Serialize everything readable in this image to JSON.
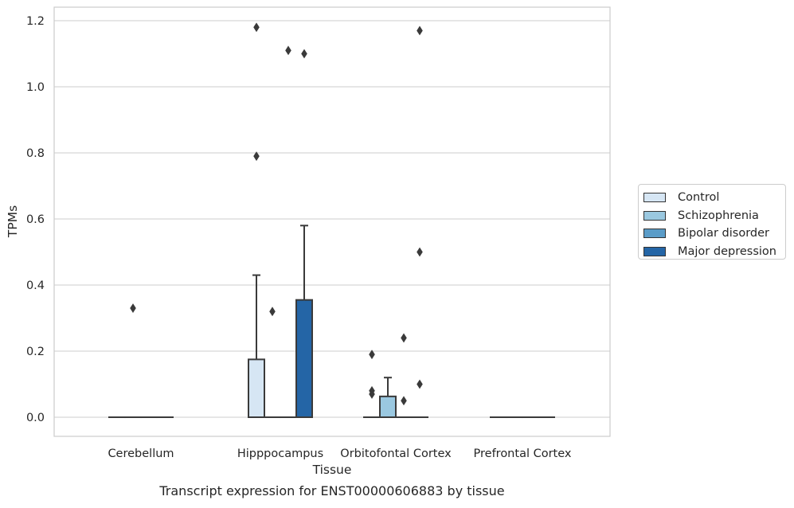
{
  "chart_data": {
    "type": "box",
    "xlabel": "Tissue",
    "ylabel": "TPMs",
    "caption": "Transcript expression for ENST00000606883 by tissue",
    "ylim": [
      -0.055,
      1.24
    ],
    "yticks": [
      "0.0",
      "0.2",
      "0.4",
      "0.6",
      "0.8",
      "1.0",
      "1.2"
    ],
    "grid": true,
    "legend_position": "right",
    "categories": [
      "Cerebellum",
      "Hipppocampus",
      "Orbitofontal Cortex",
      "Prefrontal Cortex"
    ],
    "series": [
      {
        "name": "Control",
        "color": "#d6e6f4",
        "boxes": [
          {
            "q1": 0,
            "median": 0,
            "q3": 0,
            "whisker_low": 0,
            "whisker_high": 0,
            "outliers": []
          },
          {
            "q1": 0,
            "median": 0,
            "q3": 0.175,
            "whisker_low": 0,
            "whisker_high": 0.43,
            "outliers": [
              1.18,
              0.79
            ]
          },
          {
            "q1": 0,
            "median": 0,
            "q3": 0,
            "whisker_low": 0,
            "whisker_high": 0,
            "outliers": [
              0.19,
              0.08,
              0.07
            ]
          },
          {
            "q1": 0,
            "median": 0,
            "q3": 0,
            "whisker_low": 0,
            "whisker_high": 0,
            "outliers": []
          }
        ]
      },
      {
        "name": "Schizophrenia",
        "color": "#9ac8e0",
        "boxes": [
          {
            "q1": 0,
            "median": 0,
            "q3": 0,
            "whisker_low": 0,
            "whisker_high": 0,
            "outliers": [
              0.33
            ]
          },
          {
            "q1": 0,
            "median": 0,
            "q3": 0,
            "whisker_low": 0,
            "whisker_high": 0,
            "outliers": [
              0.32
            ]
          },
          {
            "q1": 0,
            "median": 0,
            "q3": 0.063,
            "whisker_low": 0,
            "whisker_high": 0.12,
            "outliers": []
          },
          {
            "q1": 0,
            "median": 0,
            "q3": 0,
            "whisker_low": 0,
            "whisker_high": 0,
            "outliers": []
          }
        ]
      },
      {
        "name": "Bipolar disorder",
        "color": "#5a9cc8",
        "boxes": [
          {
            "q1": 0,
            "median": 0,
            "q3": 0,
            "whisker_low": 0,
            "whisker_high": 0,
            "outliers": []
          },
          {
            "q1": 0,
            "median": 0,
            "q3": 0,
            "whisker_low": 0,
            "whisker_high": 0,
            "outliers": [
              1.11
            ]
          },
          {
            "q1": 0,
            "median": 0,
            "q3": 0,
            "whisker_low": 0,
            "whisker_high": 0,
            "outliers": [
              0.24,
              0.05
            ]
          },
          {
            "q1": 0,
            "median": 0,
            "q3": 0,
            "whisker_low": 0,
            "whisker_high": 0,
            "outliers": []
          }
        ]
      },
      {
        "name": "Major depression",
        "color": "#2465a6",
        "boxes": [
          {
            "q1": 0,
            "median": 0,
            "q3": 0,
            "whisker_low": 0,
            "whisker_high": 0,
            "outliers": []
          },
          {
            "q1": 0,
            "median": 0,
            "q3": 0.355,
            "whisker_low": 0,
            "whisker_high": 0.58,
            "outliers": [
              1.1
            ]
          },
          {
            "q1": 0,
            "median": 0,
            "q3": 0,
            "whisker_low": 0,
            "whisker_high": 0,
            "outliers": [
              1.17,
              0.5,
              0.1
            ]
          },
          {
            "q1": 0,
            "median": 0,
            "q3": 0,
            "whisker_low": 0,
            "whisker_high": 0,
            "outliers": []
          }
        ]
      }
    ]
  }
}
